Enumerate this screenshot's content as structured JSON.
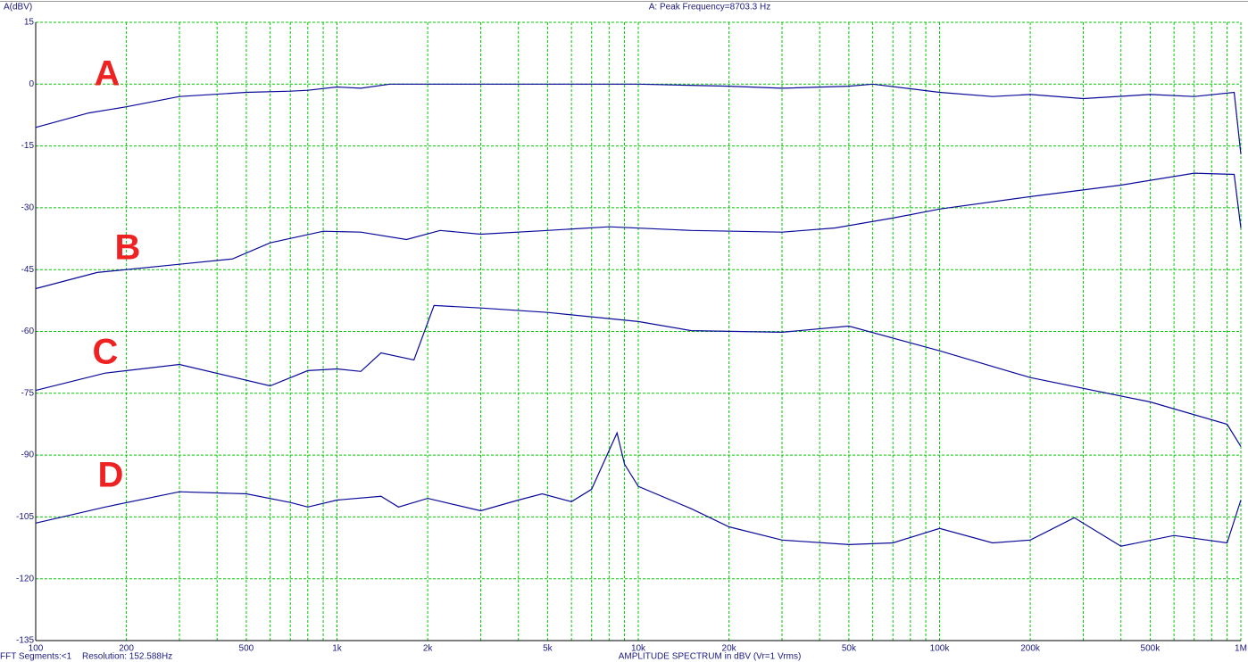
{
  "chart_data": {
    "type": "line",
    "ylabel": "A(dBV)",
    "title": "A: Peak Frequency=8703.3 Hz",
    "xlabel": "AMPLITUDE SPECTRUM in dBV (Vr=1 Vrms)",
    "footer_left": "FFT Segments:<1",
    "footer_resolution": "Resolution: 152.588Hz",
    "xscale": "log",
    "grid": true,
    "grid_color": "#00cc00",
    "xlim": [
      100,
      1000000
    ],
    "ylim": [
      -135,
      15
    ],
    "xticks": [
      100,
      200,
      500,
      {
        "value": 1000,
        "label": "1k"
      },
      {
        "value": 2000,
        "label": "2k"
      },
      {
        "value": 5000,
        "label": "5k"
      },
      {
        "value": 10000,
        "label": "10k"
      },
      {
        "value": 20000,
        "label": "20k"
      },
      {
        "value": 50000,
        "label": "50k"
      },
      {
        "value": 100000,
        "label": "100k"
      },
      {
        "value": 200000,
        "label": "200k"
      },
      {
        "value": 500000,
        "label": "500k"
      },
      {
        "value": 1000000,
        "label": "1M"
      }
    ],
    "xgrid_minor": [
      300,
      400,
      600,
      700,
      800,
      900,
      3000,
      4000,
      6000,
      7000,
      8000,
      9000,
      30000,
      40000,
      60000,
      70000,
      80000,
      90000,
      300000,
      400000,
      600000,
      700000,
      800000,
      900000
    ],
    "yticks": [
      15,
      0,
      -15,
      -30,
      -45,
      -60,
      -75,
      -90,
      -105,
      -120,
      -135
    ],
    "series": [
      {
        "name": "A",
        "color": "#0a0a9a",
        "x": [
          100,
          150,
          200,
          300,
          500,
          700,
          800,
          1000,
          1200,
          1500,
          2000,
          5000,
          10000,
          20000,
          30000,
          50000,
          60000,
          100000,
          150000,
          200000,
          300000,
          500000,
          700000,
          950000,
          1000000
        ],
        "values": [
          -10.5,
          -7,
          -5.5,
          -3,
          -2,
          -1.7,
          -1.5,
          -0.7,
          -1,
          0,
          0,
          0,
          0,
          -0.5,
          -1,
          -0.5,
          0,
          -2,
          -3,
          -2.5,
          -3.5,
          -2.5,
          -3,
          -2,
          -17
        ]
      },
      {
        "name": "B",
        "color": "#0a0a9a",
        "x": [
          100,
          160,
          300,
          450,
          600,
          900,
          1200,
          1700,
          2200,
          3000,
          5000,
          8000,
          15000,
          30000,
          45000,
          70000,
          100000,
          200000,
          400000,
          700000,
          950000,
          1000000
        ],
        "values": [
          -49.6,
          -45.7,
          -43.7,
          -42.4,
          -38.5,
          -35.7,
          -35.9,
          -37.7,
          -35.5,
          -36.4,
          -35.5,
          -34.6,
          -35.5,
          -35.9,
          -34.9,
          -32.5,
          -30.3,
          -27.3,
          -24.5,
          -21.6,
          -21.9,
          -34.9
        ]
      },
      {
        "name": "C",
        "color": "#0a0a9a",
        "x": [
          100,
          170,
          300,
          600,
          800,
          1000,
          1200,
          1400,
          1800,
          2100,
          3000,
          5000,
          10000,
          15000,
          30000,
          50000,
          100000,
          200000,
          500000,
          900000,
          1000000
        ],
        "values": [
          -74.3,
          -70.1,
          -68,
          -73.2,
          -69.5,
          -69.1,
          -69.7,
          -65.2,
          -66.9,
          -53.7,
          -54.3,
          -55.4,
          -57.6,
          -59.8,
          -60.2,
          -58.7,
          -64.7,
          -71.2,
          -77.1,
          -82.5,
          -87.9
        ]
      },
      {
        "name": "D",
        "color": "#0a0a9a",
        "x": [
          100,
          170,
          300,
          500,
          700,
          800,
          1000,
          1400,
          1600,
          2000,
          3000,
          4000,
          4800,
          6000,
          7000,
          8500,
          9000,
          10000,
          15000,
          20000,
          30000,
          50000,
          70000,
          100000,
          150000,
          200000,
          280000,
          400000,
          600000,
          900000,
          1000000
        ],
        "values": [
          -106.5,
          -102.6,
          -98.9,
          -99.4,
          -101.5,
          -102.6,
          -100.9,
          -100,
          -102.6,
          -100.5,
          -103.5,
          -100.9,
          -99.4,
          -101.3,
          -98.3,
          -84.6,
          -92.2,
          -97.6,
          -103,
          -107.4,
          -110.6,
          -111.7,
          -111.3,
          -107.8,
          -111.3,
          -110.6,
          -105.2,
          -112.1,
          -109.5,
          -111.3,
          -100.9
        ]
      }
    ]
  }
}
